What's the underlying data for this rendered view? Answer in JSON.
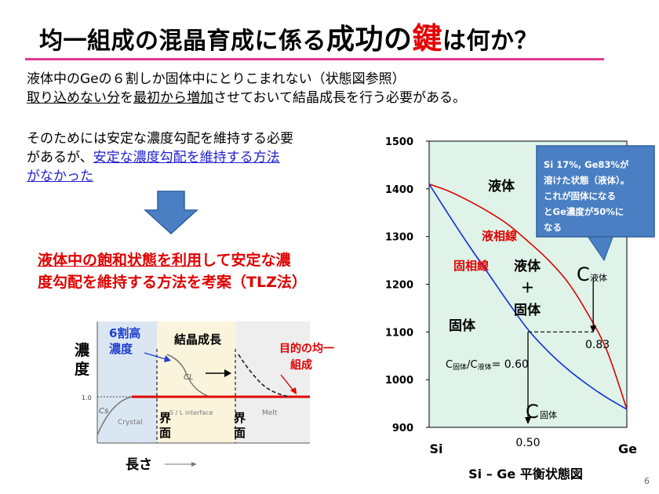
{
  "title": {
    "part1": "均一組成の混晶育成に係る",
    "part2": "成功の",
    "part3": "鍵",
    "part4": "は何か？"
  },
  "intro": {
    "line1": "液体中のGeの６割しか固体中にとりこまれない（状態図参照）",
    "line2_underlined_a": "取り込めない分",
    "line2_b": "を",
    "line2_underlined_c": "最初から増加",
    "line2_d": "させておいて結晶成長を行う必要がある。"
  },
  "need": {
    "line1": "そのためには安定な濃度勾配を維持する必要",
    "line2_a": "があるが、",
    "line2_link": "安定な濃度勾配を維持する方法",
    "line3_link": "がなかった"
  },
  "proposal": {
    "line1_u1": "液体中の飽和状態を利用",
    "line1_b": "して安定な濃",
    "line2": "度勾配を維持する方法を考案（TLZ法）"
  },
  "left_diagram": {
    "ylabel_1": "濃",
    "ylabel_2": "度",
    "xlabel": "長さ",
    "tick_value": "1.0",
    "cs_label": "Cs",
    "cl_label": "CL",
    "crystal_label": "Crystal",
    "interface_label": "S / L  interface",
    "melt_label": "Melt",
    "note_high_1": "6割高",
    "note_high_2": "濃度",
    "growth_label": "結晶成長",
    "target_1": "目的の均一",
    "target_2": "組成",
    "boundary_1a": "界",
    "boundary_1b": "面",
    "boundary_2a": "界",
    "boundary_2b": "面"
  },
  "chart_data": {
    "type": "line",
    "title": "Si – Ge 平衡状態図",
    "ylim": [
      900,
      1500
    ],
    "yticks": [
      900,
      1000,
      1100,
      1200,
      1300,
      1400,
      1500
    ],
    "xticks": [
      "Si",
      "0.50",
      "Ge"
    ],
    "xlim": [
      0,
      1
    ],
    "series": [
      {
        "name": "液相線",
        "color": "#e00000",
        "x": [
          0,
          0.1,
          0.2,
          0.3,
          0.4,
          0.5,
          0.6,
          0.7,
          0.8,
          0.9,
          1.0
        ],
        "y": [
          1410,
          1395,
          1375,
          1352,
          1325,
          1290,
          1252,
          1205,
          1140,
          1060,
          938
        ]
      },
      {
        "name": "固相線",
        "color": "#1030e0",
        "x": [
          0,
          0.1,
          0.2,
          0.3,
          0.4,
          0.5,
          0.6,
          0.7,
          0.8,
          0.9,
          1.0
        ],
        "y": [
          1410,
          1345,
          1282,
          1222,
          1162,
          1105,
          1060,
          1022,
          990,
          962,
          938
        ]
      }
    ],
    "labels": {
      "liquid": "液体",
      "liquidus": "液相線",
      "solidus": "固相線",
      "two_phase_1": "液体",
      "two_phase_2": "＋",
      "two_phase_3": "固体",
      "solid": "固体",
      "c_liquid": "C",
      "c_liquid_sub": "液体",
      "c_solid": "C",
      "c_solid_sub": "固体",
      "ratio_c1": "C",
      "ratio_sub1": "固体",
      "ratio_slash": "/C",
      "ratio_sub2": "液体",
      "ratio_value": "= 0.60",
      "val_083": "0.83",
      "val_050": "0.50"
    },
    "callout": {
      "line1": "Si 17%, Ge83%が",
      "line2": "溶けた状態（液体）。",
      "line3": "これが固体になる",
      "line4": "とGe濃度が50%に",
      "line5": "なる"
    },
    "tie_line": {
      "temperature": 1100,
      "x_solid": 0.5,
      "x_liquid": 0.83
    }
  },
  "page_number": "6"
}
